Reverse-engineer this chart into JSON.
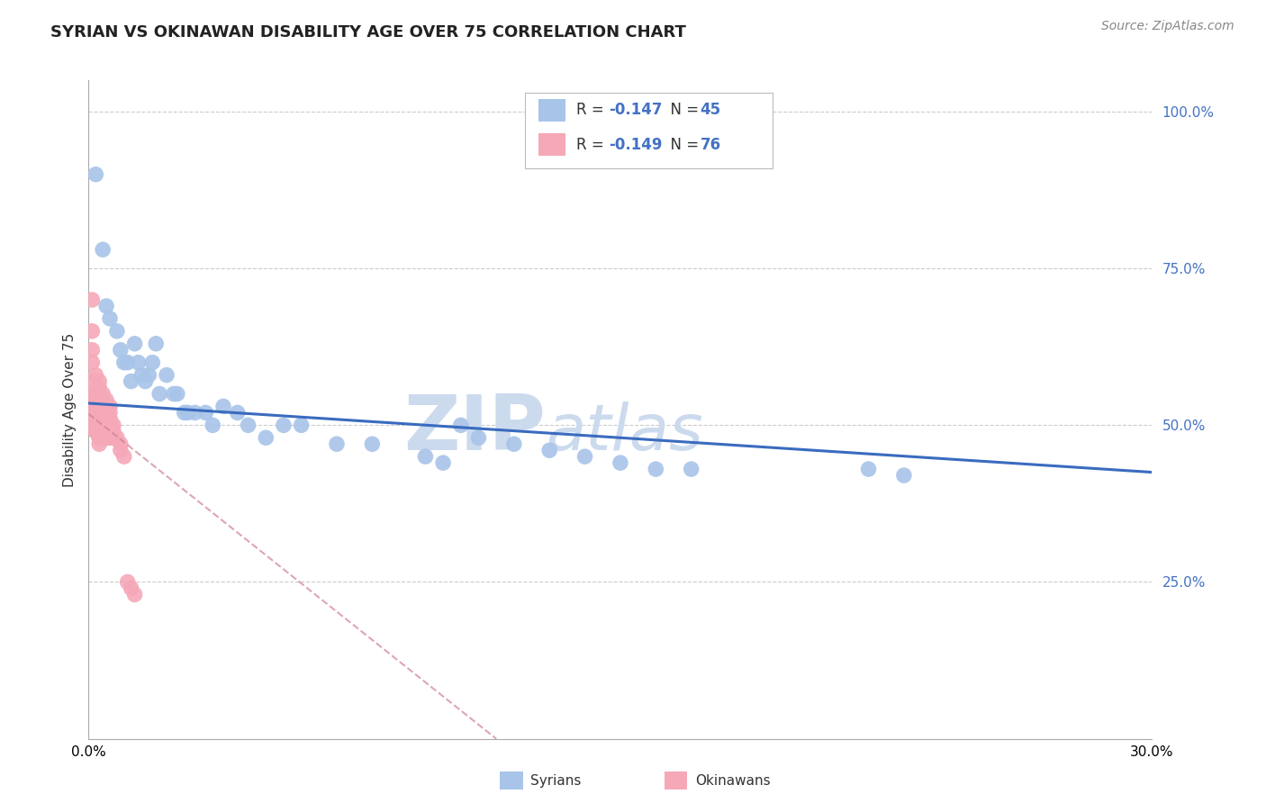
{
  "title": "SYRIAN VS OKINAWAN DISABILITY AGE OVER 75 CORRELATION CHART",
  "source": "Source: ZipAtlas.com",
  "ylabel": "Disability Age Over 75",
  "syrians_color": "#a8c4e8",
  "okinawans_color": "#f5a8b8",
  "trendline_syrian_color": "#3a6bbf",
  "trendline_okinawan_color": "#d08090",
  "background_color": "#ffffff",
  "watermark_zip": "ZIP",
  "watermark_atlas": "atlas",
  "watermark_color": "#ccdaee",
  "syrians_x": [
    0.002,
    0.004,
    0.005,
    0.006,
    0.008,
    0.009,
    0.01,
    0.011,
    0.012,
    0.013,
    0.014,
    0.015,
    0.016,
    0.017,
    0.018,
    0.019,
    0.02,
    0.022,
    0.024,
    0.025,
    0.027,
    0.028,
    0.03,
    0.033,
    0.035,
    0.038,
    0.042,
    0.045,
    0.05,
    0.055,
    0.06,
    0.07,
    0.08,
    0.095,
    0.1,
    0.105,
    0.11,
    0.12,
    0.13,
    0.14,
    0.15,
    0.16,
    0.17,
    0.22,
    0.23
  ],
  "syrians_y": [
    0.9,
    0.78,
    0.69,
    0.67,
    0.65,
    0.62,
    0.6,
    0.6,
    0.57,
    0.63,
    0.6,
    0.58,
    0.57,
    0.58,
    0.6,
    0.63,
    0.55,
    0.58,
    0.55,
    0.55,
    0.52,
    0.52,
    0.52,
    0.52,
    0.5,
    0.53,
    0.52,
    0.5,
    0.48,
    0.5,
    0.5,
    0.47,
    0.47,
    0.45,
    0.44,
    0.5,
    0.48,
    0.47,
    0.46,
    0.45,
    0.44,
    0.43,
    0.43,
    0.43,
    0.42
  ],
  "okinawans_x": [
    0.001,
    0.001,
    0.001,
    0.001,
    0.001,
    0.001,
    0.001,
    0.001,
    0.001,
    0.001,
    0.001,
    0.002,
    0.002,
    0.002,
    0.002,
    0.002,
    0.002,
    0.002,
    0.002,
    0.002,
    0.002,
    0.002,
    0.002,
    0.002,
    0.002,
    0.003,
    0.003,
    0.003,
    0.003,
    0.003,
    0.003,
    0.003,
    0.003,
    0.003,
    0.003,
    0.003,
    0.003,
    0.003,
    0.003,
    0.003,
    0.003,
    0.004,
    0.004,
    0.004,
    0.004,
    0.004,
    0.004,
    0.004,
    0.004,
    0.004,
    0.005,
    0.005,
    0.005,
    0.005,
    0.005,
    0.005,
    0.005,
    0.005,
    0.006,
    0.006,
    0.006,
    0.006,
    0.006,
    0.006,
    0.006,
    0.006,
    0.007,
    0.007,
    0.007,
    0.008,
    0.009,
    0.009,
    0.01,
    0.011,
    0.012,
    0.013
  ],
  "okinawans_y": [
    0.7,
    0.65,
    0.62,
    0.6,
    0.57,
    0.55,
    0.53,
    0.52,
    0.51,
    0.5,
    0.5,
    0.58,
    0.55,
    0.54,
    0.53,
    0.52,
    0.52,
    0.51,
    0.51,
    0.51,
    0.5,
    0.5,
    0.5,
    0.49,
    0.49,
    0.57,
    0.56,
    0.55,
    0.53,
    0.52,
    0.51,
    0.51,
    0.5,
    0.5,
    0.5,
    0.49,
    0.49,
    0.49,
    0.48,
    0.48,
    0.47,
    0.55,
    0.54,
    0.53,
    0.52,
    0.51,
    0.5,
    0.5,
    0.49,
    0.48,
    0.54,
    0.53,
    0.52,
    0.51,
    0.5,
    0.5,
    0.49,
    0.48,
    0.53,
    0.52,
    0.51,
    0.51,
    0.5,
    0.5,
    0.49,
    0.48,
    0.5,
    0.49,
    0.48,
    0.48,
    0.47,
    0.46,
    0.45,
    0.25,
    0.24,
    0.23
  ],
  "xmin": 0.0,
  "xmax": 0.3,
  "ymin": 0.0,
  "ymax": 1.05,
  "yticks": [
    0.25,
    0.5,
    0.75,
    1.0
  ],
  "ytick_labels": [
    "25.0%",
    "50.0%",
    "75.0%",
    "100.0%"
  ],
  "xtick_left": "0.0%",
  "xtick_right": "30.0%",
  "title_fontsize": 13,
  "axis_label_fontsize": 11,
  "tick_fontsize": 11,
  "source_fontsize": 10,
  "legend_r1_black": "R = ",
  "legend_r1_blue": "-0.147",
  "legend_n1_black": "  N = ",
  "legend_n1_blue": "45",
  "legend_r2_black": "R = ",
  "legend_r2_blue": "-0.149",
  "legend_n2_black": "  N = ",
  "legend_n2_blue": "76",
  "bottom_legend_syrians": "Syrians",
  "bottom_legend_okinawans": "Okinawans",
  "syrian_trend_x0": 0.0,
  "syrian_trend_y0": 0.535,
  "syrian_trend_x1": 0.3,
  "syrian_trend_y1": 0.425,
  "okinawan_trend_x0": 0.0,
  "okinawan_trend_y0": 0.518,
  "okinawan_trend_x1": 0.115,
  "okinawan_trend_y1": 0.0
}
